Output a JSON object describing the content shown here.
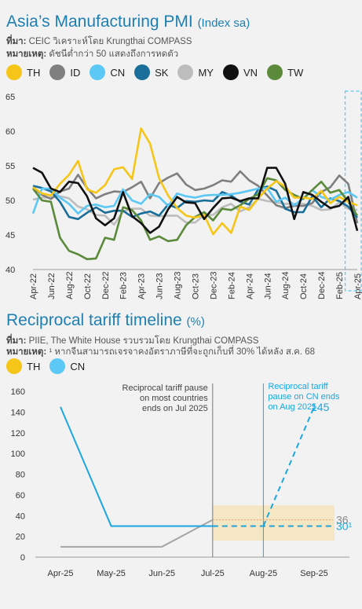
{
  "chart1": {
    "title": "Asia’s Manufacturing PMI",
    "unit": "(Index sa)",
    "source_label": "ที่มา:",
    "source_text": "CEIC วิเคราะห์โดย Krungthai COMPASS",
    "note_label": "หมายเหตุ:",
    "note_text": "ดัชนีต่ำกว่า 50 แสดงถึงการหดตัว"
  },
  "chart2": {
    "title": "Reciprocal tariff timeline",
    "unit": "(%)",
    "source_label": "ที่มา:",
    "source_text": "PIIE, The White House รวบรวมโดย Krungthai COMPASS",
    "note_label": "หมายเหตุ:",
    "note_text": "¹ หากจีนสามารถเจรจาคงอัตราภาษีที่จะถูกเก็บที่ 30% ได้หลัง ส.ค. 68",
    "annotation_left": [
      "Reciprocal tariff pause",
      "on most countries",
      "ends on Jul 2025"
    ],
    "annotation_right": [
      "Reciprocal tariff",
      "pause on CN ends",
      "on Aug 2025"
    ]
  },
  "colors": {
    "TH": "#f5c518",
    "ID": "#7f7f7f",
    "CN": "#5bc8f5",
    "SK": "#1a6e9a",
    "MY": "#bdbdbd",
    "VN": "#111111",
    "TW": "#5a8a3a",
    "title": "#1f7fb0",
    "tariff_cn": "#1aa7e0",
    "tariff_th": "#a6a6a6",
    "highlight": "#f5e6c4",
    "forecast_box": "#5bc8f5"
  },
  "chart_data": [
    {
      "type": "line",
      "title": "Asia’s Manufacturing PMI",
      "ylim": [
        40,
        65
      ],
      "yticks": [
        40,
        45,
        50,
        55,
        60,
        65
      ],
      "x": [
        "Apr-22",
        "May-22",
        "Jun-22",
        "Jul-22",
        "Aug-22",
        "Sep-22",
        "Oct-22",
        "Nov-22",
        "Dec-22",
        "Jan-23",
        "Feb-23",
        "Mar-23",
        "Apr-23",
        "May-23",
        "Jun-23",
        "Jul-23",
        "Aug-23",
        "Sep-23",
        "Oct-23",
        "Nov-23",
        "Dec-23",
        "Jan-24",
        "Feb-24",
        "Mar-24",
        "Apr-24",
        "May-24",
        "Jun-24",
        "Jul-24",
        "Aug-24",
        "Sep-24",
        "Oct-24",
        "Nov-24",
        "Dec-24",
        "Jan-25",
        "Feb-25",
        "Mar-25",
        "Apr-25"
      ],
      "xtick_labels": [
        "Apr-22",
        "Jun-22",
        "Aug-22",
        "Oct-22",
        "Dec-22",
        "Feb-23",
        "Apr-23",
        "Jun-23",
        "Aug-23",
        "Oct-23",
        "Dec-23",
        "Feb-24",
        "Apr-24",
        "Jun-24",
        "Aug-24",
        "Oct-24",
        "Dec-24",
        "Feb-25",
        "Apr-25"
      ],
      "legend": [
        "TH",
        "ID",
        "CN",
        "SK",
        "MY",
        "VN",
        "TW"
      ],
      "grid": false,
      "series": [
        {
          "name": "TH",
          "values": [
            51.9,
            51.0,
            50.7,
            52.4,
            53.7,
            55.7,
            51.6,
            51.1,
            52.2,
            54.5,
            54.8,
            53.1,
            60.4,
            58.2,
            53.2,
            50.7,
            48.9,
            47.8,
            47.5,
            47.9,
            45.1,
            46.7,
            45.3,
            49.1,
            48.6,
            50.3,
            51.7,
            52.8,
            52.0,
            50.4,
            50.4,
            50.2,
            51.4,
            49.6,
            50.5,
            49.8,
            49.3
          ]
        },
        {
          "name": "ID",
          "values": [
            51.9,
            50.8,
            50.2,
            51.3,
            51.7,
            53.7,
            51.8,
            50.3,
            50.9,
            51.3,
            51.2,
            51.9,
            52.7,
            50.3,
            52.5,
            53.3,
            53.9,
            52.3,
            51.5,
            51.7,
            52.2,
            52.9,
            52.7,
            54.2,
            52.9,
            52.1,
            50.7,
            49.3,
            48.9,
            49.2,
            49.2,
            49.6,
            51.2,
            51.9,
            53.6,
            52.4,
            46.7
          ]
        },
        {
          "name": "CN",
          "values": [
            48.1,
            51.7,
            51.7,
            50.4,
            49.5,
            48.1,
            49.2,
            49.4,
            49.0,
            49.2,
            51.6,
            50.0,
            49.5,
            50.9,
            50.5,
            49.2,
            51.0,
            50.6,
            50.4,
            50.7,
            50.8,
            50.8,
            50.9,
            51.1,
            51.4,
            51.7,
            51.8,
            49.8,
            50.4,
            49.3,
            50.3,
            51.5,
            50.5,
            50.1,
            50.8,
            51.2,
            50.4
          ]
        },
        {
          "name": "SK",
          "values": [
            52.1,
            51.8,
            51.3,
            49.8,
            47.6,
            47.3,
            48.2,
            49.0,
            48.2,
            48.5,
            48.5,
            47.6,
            48.1,
            48.4,
            47.8,
            49.4,
            48.9,
            49.9,
            49.8,
            50.0,
            49.9,
            51.2,
            50.7,
            49.8,
            49.4,
            51.6,
            52.0,
            51.4,
            48.8,
            48.3,
            48.3,
            50.6,
            49.0,
            50.3,
            49.9,
            49.1,
            47.5
          ]
        },
        {
          "name": "MY",
          "values": [
            50.1,
            50.4,
            50.4,
            50.6,
            50.3,
            49.1,
            48.7,
            47.9,
            47.8,
            46.5,
            48.4,
            48.8,
            48.8,
            47.8,
            47.7,
            47.8,
            47.8,
            46.8,
            46.8,
            47.9,
            47.9,
            49.0,
            49.5,
            48.4,
            49.0,
            50.2,
            49.9,
            49.7,
            49.5,
            49.5,
            49.5,
            49.2,
            48.6,
            48.7,
            49.7,
            48.8,
            48.6
          ]
        },
        {
          "name": "VN",
          "values": [
            54.7,
            54.0,
            51.7,
            51.2,
            52.7,
            52.5,
            50.6,
            47.4,
            46.4,
            47.4,
            51.2,
            47.7,
            46.7,
            45.3,
            46.2,
            48.7,
            50.5,
            49.7,
            49.6,
            47.3,
            48.9,
            50.3,
            50.4,
            49.9,
            50.3,
            50.3,
            54.7,
            54.7,
            52.4,
            47.3,
            51.2,
            50.8,
            49.8,
            48.9,
            49.2,
            50.5,
            45.6
          ]
        },
        {
          "name": "TW",
          "values": [
            51.7,
            50.0,
            49.8,
            44.6,
            42.7,
            42.2,
            41.5,
            41.6,
            44.6,
            44.3,
            49.0,
            48.6,
            47.1,
            44.3,
            44.8,
            44.1,
            44.3,
            46.4,
            47.6,
            48.3,
            47.1,
            48.8,
            48.6,
            49.3,
            50.2,
            50.9,
            53.2,
            52.9,
            51.5,
            50.8,
            50.2,
            51.5,
            52.7,
            51.1,
            51.5,
            49.8,
            47.8
          ]
        }
      ]
    },
    {
      "type": "line",
      "title": "Reciprocal tariff timeline",
      "ylim": [
        0,
        160
      ],
      "yticks": [
        0,
        20,
        40,
        60,
        80,
        100,
        120,
        140,
        160
      ],
      "categories": [
        "Apr-25",
        "May-25",
        "Jun-25",
        "Jul-25",
        "Aug-25",
        "Sep-25"
      ],
      "legend": [
        "TH",
        "CN"
      ],
      "series": [
        {
          "name": "TH",
          "points": [
            [
              "Apr-25",
              10
            ],
            [
              "May-25",
              10
            ],
            [
              "Jun-25",
              10
            ],
            [
              "Jul-25",
              36
            ]
          ],
          "projected_value": 36,
          "projected_label": "36"
        },
        {
          "name": "CN",
          "points": [
            [
              "Apr-25",
              145
            ],
            [
              "May-25",
              30
            ],
            [
              "Jun-25",
              30
            ],
            [
              "Jul-25",
              30
            ]
          ],
          "projected_base": 30,
          "projected_base_label": "30¹",
          "projected_high": 145,
          "projected_high_label": "145"
        }
      ],
      "milestones": [
        "Jul-25",
        "Aug-25"
      ]
    }
  ]
}
